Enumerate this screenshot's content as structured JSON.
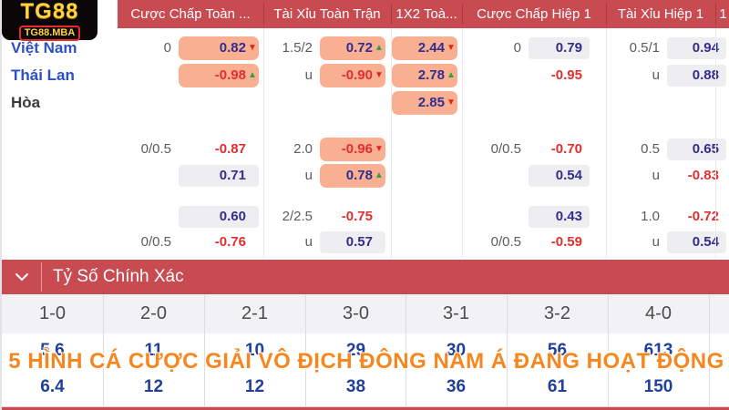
{
  "logo": {
    "title": "TG88",
    "subtitle": "TG88.MBA"
  },
  "odds": {
    "column_headers": [
      {
        "id": "cc_toan",
        "label": "Cược Chấp Toàn ..."
      },
      {
        "id": "tx_toan",
        "label": "Tài Xỉu Toàn Trận"
      },
      {
        "id": "x12",
        "label": "1X2 Toà..."
      },
      {
        "id": "cc_h1",
        "label": "Cược Chấp Hiệp 1"
      },
      {
        "id": "tx_h1",
        "label": "Tài Xỉu Hiệp 1"
      },
      {
        "id": "extra",
        "label": "1"
      }
    ],
    "rows": [
      {
        "team": "Việt Nam",
        "team_color": "blue",
        "cells": [
          {
            "col": "cc_toan",
            "hdp": "0",
            "odds": "0.82",
            "style": "orange",
            "color": "blue",
            "trend": "down"
          },
          {
            "col": "tx_toan",
            "hdp": "1.5/2",
            "odds": "0.72",
            "style": "orange",
            "color": "blue",
            "trend": "up"
          },
          {
            "col": "x12",
            "odds": "2.44",
            "style": "orange",
            "color": "blue",
            "trend": "down"
          },
          {
            "col": "cc_h1",
            "hdp": "0",
            "odds": "0.79",
            "style": "gray",
            "color": "blue"
          },
          {
            "col": "tx_h1",
            "hdp": "0.5/1",
            "odds": "0.94",
            "style": "gray",
            "color": "blue"
          }
        ]
      },
      {
        "team": "Thái Lan",
        "team_color": "blue",
        "cells": [
          {
            "col": "cc_toan",
            "odds": "-0.98",
            "style": "orange",
            "color": "red",
            "trend": "up"
          },
          {
            "col": "tx_toan",
            "hdp": "u",
            "odds": "-0.90",
            "style": "orange",
            "color": "red",
            "trend": "down"
          },
          {
            "col": "x12",
            "odds": "2.78",
            "style": "orange",
            "color": "blue",
            "trend": "up"
          },
          {
            "col": "cc_h1",
            "odds": "-0.95",
            "style": "plain",
            "color": "red"
          },
          {
            "col": "tx_h1",
            "hdp": "u",
            "odds": "0.88",
            "style": "gray",
            "color": "blue"
          }
        ]
      },
      {
        "team": "Hòa",
        "team_color": "dark",
        "cells": [
          {
            "col": "x12",
            "odds": "2.85",
            "style": "orange",
            "color": "blue",
            "trend": "down"
          }
        ]
      },
      {
        "cells": [
          {
            "col": "cc_toan",
            "hdp": "0/0.5",
            "odds": "-0.87",
            "style": "plain",
            "color": "red"
          },
          {
            "col": "tx_toan",
            "hdp": "2.0",
            "odds": "-0.96",
            "style": "orange",
            "color": "red",
            "trend": "down"
          },
          {
            "col": "cc_h1",
            "hdp": "0/0.5",
            "odds": "-0.70",
            "style": "plain",
            "color": "red"
          },
          {
            "col": "tx_h1",
            "hdp": "0.5",
            "odds": "0.65",
            "style": "gray",
            "color": "blue"
          }
        ]
      },
      {
        "cells": [
          {
            "col": "cc_toan",
            "odds": "0.71",
            "style": "gray",
            "color": "blue"
          },
          {
            "col": "tx_toan",
            "hdp": "u",
            "odds": "0.78",
            "style": "orange",
            "color": "blue",
            "trend": "up"
          },
          {
            "col": "cc_h1",
            "odds": "0.54",
            "style": "gray",
            "color": "blue"
          },
          {
            "col": "tx_h1",
            "hdp": "u",
            "odds": "-0.83",
            "style": "plain",
            "color": "red"
          }
        ]
      },
      {
        "cells": [
          {
            "col": "cc_toan",
            "odds": "0.60",
            "style": "gray",
            "color": "blue"
          },
          {
            "col": "tx_toan",
            "hdp": "2/2.5",
            "odds": "-0.75",
            "style": "plain",
            "color": "red"
          },
          {
            "col": "cc_h1",
            "odds": "0.43",
            "style": "gray",
            "color": "blue"
          },
          {
            "col": "tx_h1",
            "hdp": "1.0",
            "odds": "-0.72",
            "style": "plain",
            "color": "red"
          }
        ]
      },
      {
        "cells": [
          {
            "col": "cc_toan",
            "hdp": "0/0.5",
            "odds": "-0.76",
            "style": "plain",
            "color": "red"
          },
          {
            "col": "tx_toan",
            "hdp": "u",
            "odds": "0.57",
            "style": "gray",
            "color": "blue"
          },
          {
            "col": "cc_h1",
            "hdp": "0/0.5",
            "odds": "-0.59",
            "style": "plain",
            "color": "red"
          },
          {
            "col": "tx_h1",
            "hdp": "u",
            "odds": "0.54",
            "style": "gray",
            "color": "blue"
          }
        ]
      }
    ]
  },
  "score_section": {
    "title": "Tỷ Số Chính Xác",
    "chevron_icon": "chevron-down-icon",
    "scores": [
      "1-0",
      "2-0",
      "2-1",
      "3-0",
      "3-1",
      "3-2",
      "4-0"
    ],
    "row1": [
      "5.6",
      "11",
      "10",
      "29",
      "30",
      "56",
      "613"
    ],
    "row2": [
      "6.4",
      "12",
      "12",
      "38",
      "36",
      "61",
      "150"
    ]
  },
  "overlay": {
    "text": "5 HÌNH CÁ CƯỢC GIẢI VÔ ĐỊCH ĐÔNG NAM Á ĐANG HOẠT ĐỘNG"
  },
  "trend_glyphs": {
    "up": "▲",
    "down": "▼"
  },
  "colors": {
    "header_red": "#c84b51",
    "orange_box": "#f9af92",
    "gray_box": "#eeedf0",
    "odds_blue": "#322e8d",
    "odds_red": "#e12f2f",
    "up_green": "#2f9e44",
    "down_red": "#e02518",
    "hdp_gray": "#5c5c60",
    "team_blue": "#2c4fc8",
    "team_dark": "#3b3b3f",
    "overlay_orange": "#f6871f",
    "gold": "#ffd23f",
    "score_text": "#4a4a52",
    "score_value_blue": "#21409a",
    "logo_border_red": "#e8292d"
  }
}
